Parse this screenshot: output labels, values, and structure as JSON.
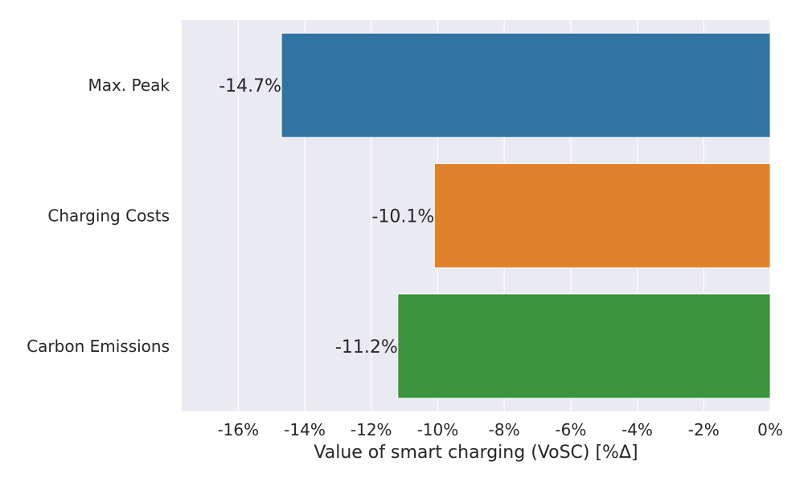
{
  "chart_data": {
    "type": "bar",
    "orientation": "horizontal",
    "categories": [
      "Max. Peak",
      "Charging Costs",
      "Carbon Emissions"
    ],
    "values": [
      -14.7,
      -10.1,
      -11.2
    ],
    "data_labels": [
      "-14.7%",
      "-10.1%",
      "-11.2%"
    ],
    "colors": [
      "#3274a1",
      "#e1812c",
      "#3a923a"
    ],
    "xlabel": "Value of smart charging (VoSC) [%Δ]",
    "ylabel": "",
    "xlim": [
      -17.7,
      0
    ],
    "xticks": [
      -16,
      -14,
      -12,
      -10,
      -8,
      -6,
      -4,
      -2,
      0
    ],
    "xtick_labels": [
      "-16%",
      "-14%",
      "-12%",
      "-10%",
      "-8%",
      "-6%",
      "-4%",
      "-2%",
      "0%"
    ],
    "grid": true,
    "background": "#eaeaf2"
  }
}
